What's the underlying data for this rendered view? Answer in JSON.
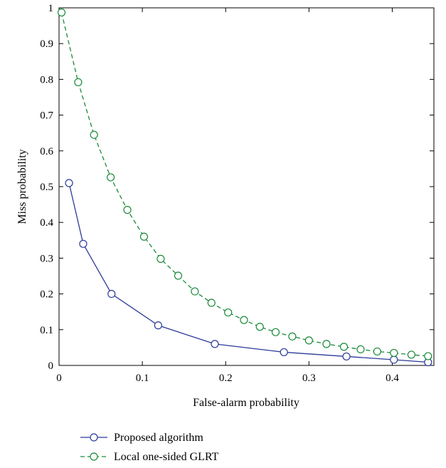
{
  "chart_data": {
    "type": "line",
    "title": "",
    "xlabel": "False-alarm probability",
    "ylabel": "Miss probability",
    "xlim": [
      0,
      0.45
    ],
    "ylim": [
      0,
      1
    ],
    "x_ticks": [
      "0",
      "0.1",
      "0.2",
      "0.3",
      "0.4"
    ],
    "x_tick_values": [
      0,
      0.1,
      0.2,
      0.3,
      0.4
    ],
    "y_ticks": [
      "0",
      "0.1",
      "0.2",
      "0.3",
      "0.4",
      "0.5",
      "0.6",
      "0.7",
      "0.8",
      "0.9",
      "1"
    ],
    "y_tick_values": [
      0,
      0.1,
      0.2,
      0.3,
      0.4,
      0.5,
      0.6,
      0.7,
      0.8,
      0.9,
      1
    ],
    "grid": false,
    "legend_position": "bottom-left, below plot",
    "series": [
      {
        "name": "Proposed algorithm",
        "color": "#2b3a9a",
        "line_style": "solid",
        "marker": "open-circle",
        "x": [
          0.012,
          0.029,
          0.063,
          0.119,
          0.187,
          0.27,
          0.345,
          0.402,
          0.443
        ],
        "y": [
          0.51,
          0.34,
          0.2,
          0.112,
          0.06,
          0.037,
          0.025,
          0.016,
          0.009
        ]
      },
      {
        "name": "Local one-sided GLRT",
        "color": "#1a8a3a",
        "line_style": "dashed",
        "marker": "open-circle",
        "x": [
          0.003,
          0.023,
          0.042,
          0.062,
          0.082,
          0.102,
          0.122,
          0.143,
          0.163,
          0.183,
          0.203,
          0.222,
          0.241,
          0.26,
          0.28,
          0.3,
          0.321,
          0.342,
          0.362,
          0.382,
          0.402,
          0.423,
          0.443
        ],
        "y": [
          0.987,
          0.792,
          0.645,
          0.526,
          0.435,
          0.36,
          0.298,
          0.251,
          0.207,
          0.175,
          0.148,
          0.127,
          0.108,
          0.093,
          0.081,
          0.07,
          0.06,
          0.052,
          0.045,
          0.039,
          0.035,
          0.03,
          0.026
        ]
      }
    ]
  }
}
